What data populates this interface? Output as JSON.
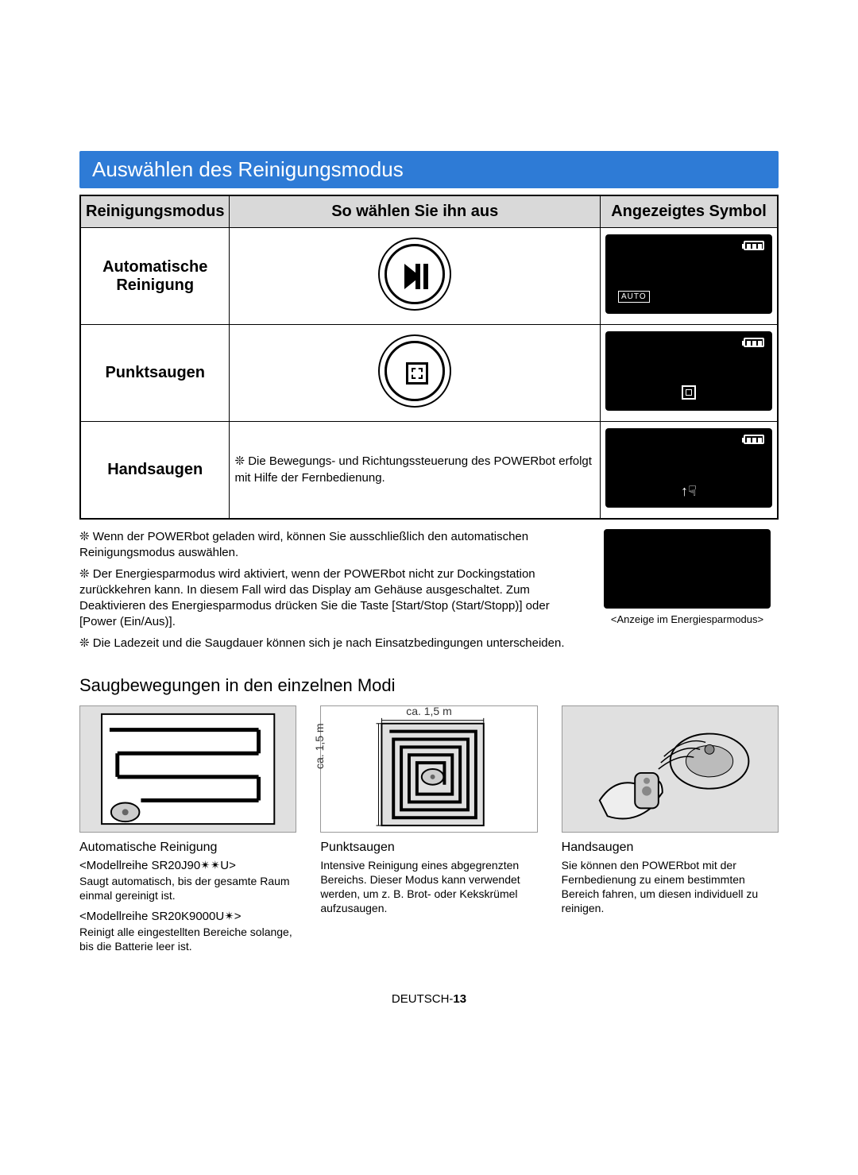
{
  "title": "Auswählen des Reinigungsmodus",
  "table": {
    "headers": [
      "Reinigungsmodus",
      "So wählen Sie ihn aus",
      "Angezeigtes Symbol"
    ],
    "rows": [
      {
        "mode": "Automatische Reinigung",
        "select": "button-playpause",
        "screen_badge": "AUTO"
      },
      {
        "mode": "Punktsaugen",
        "select": "button-spot",
        "screen_badge": "spot-icon"
      },
      {
        "mode": "Handsaugen",
        "select_text": "❊ Die Bewegungs- und Richtungssteuerung des POWERbot erfolgt mit Hilfe der Fernbedienung.",
        "screen_badge": "hand-icon"
      }
    ]
  },
  "notes": [
    "❊ Wenn der POWERbot geladen wird, können Sie ausschließlich den automatischen Reinigungsmodus auswählen.",
    "❊ Der Energiesparmodus wird aktiviert, wenn der POWERbot nicht zur Dockingstation zurückkehren kann. In diesem Fall wird das Display am Gehäuse ausgeschaltet. Zum Deaktivieren des Energiesparmodus drücken Sie die Taste [Start/Stop (Start/Stopp)] oder [Power (Ein/Aus)].",
    "❊ Die Ladezeit und die Saugdauer können sich je nach Einsatzbedingungen unterscheiden."
  ],
  "energy_caption": "<Anzeige im Energiesparmodus>",
  "section_heading": "Saugbewegungen in den einzelnen Modi",
  "spiral": {
    "dim_top": "ca. 1,5 m",
    "dim_left": "ca. 1,5 m"
  },
  "modi": [
    {
      "title": "Automatische Reinigung",
      "sub1": "<Modellreihe SR20J90✴✴U>",
      "desc1": "Saugt automatisch, bis der gesamte Raum einmal gereinigt ist.",
      "sub2": "<Modellreihe SR20K9000U✴>",
      "desc2": "Reinigt alle eingestellten Bereiche solange, bis die Batterie leer ist."
    },
    {
      "title": "Punktsaugen",
      "desc": "Intensive Reinigung eines abgegrenzten Bereichs. Dieser Modus kann verwendet werden, um z. B. Brot- oder Kekskrümel aufzusaugen."
    },
    {
      "title": "Handsaugen",
      "desc": "Sie können den POWERbot mit der Fernbedienung zu einem bestimmten Bereich fahren, um diesen individuell zu reinigen."
    }
  ],
  "footer": {
    "lang": "DEUTSCH-",
    "page": "13"
  },
  "colors": {
    "title_bg": "#2e7bd6",
    "header_bg": "#d9d9d9",
    "screen_bg": "#000000",
    "diagram_bg": "#e0e0e0"
  }
}
